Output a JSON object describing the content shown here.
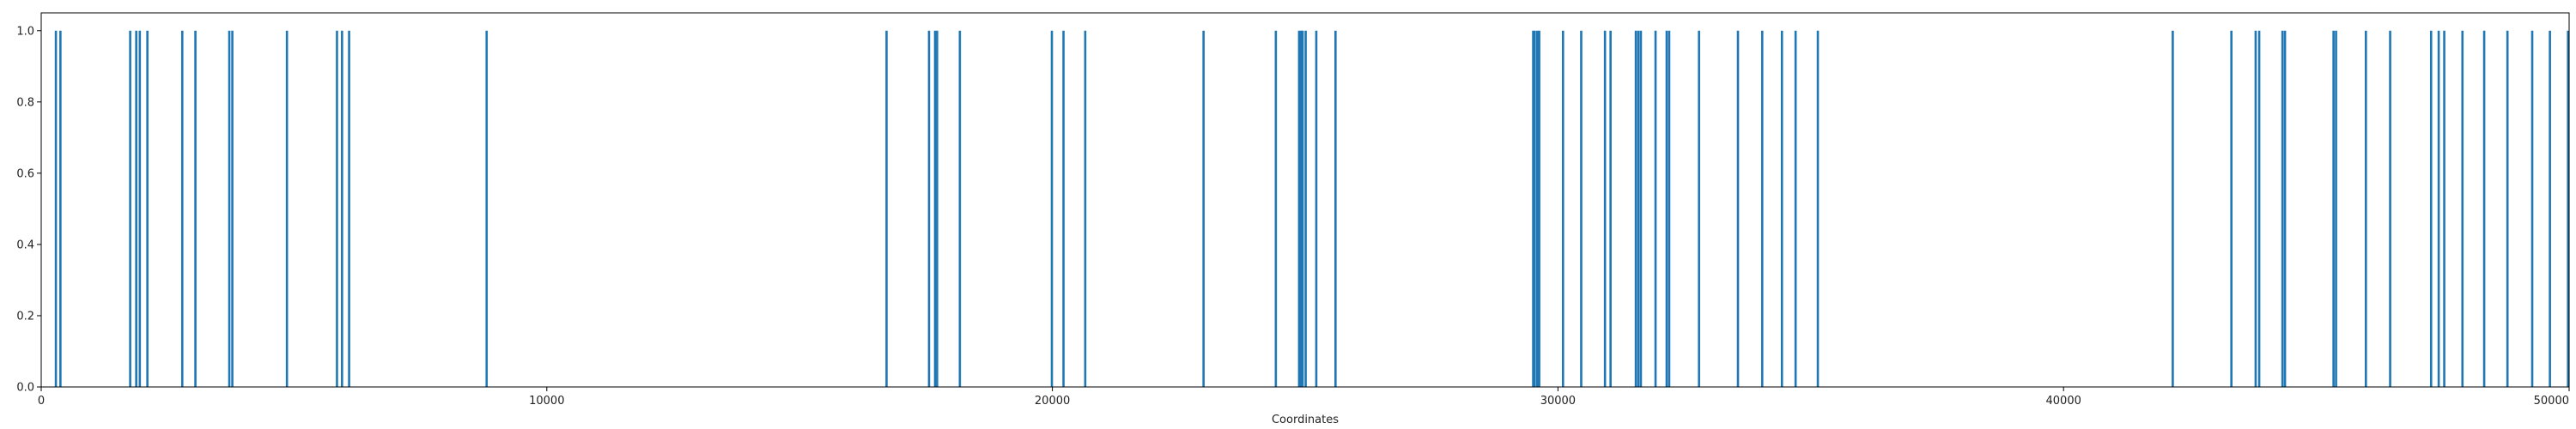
{
  "chart_data": {
    "type": "bar",
    "title": "",
    "xlabel": "Coordinates",
    "ylabel": "",
    "xlim": [
      0,
      50000
    ],
    "ylim": [
      0.0,
      1.05
    ],
    "x_ticks": [
      0,
      10000,
      20000,
      30000,
      40000,
      50000
    ],
    "x_tick_labels": [
      "0",
      "10000",
      "20000",
      "30000",
      "40000",
      "50000"
    ],
    "y_ticks": [
      0.0,
      0.2,
      0.4,
      0.6,
      0.8,
      1.0
    ],
    "y_tick_labels": [
      "0.0",
      "0.2",
      "0.4",
      "0.6",
      "0.8",
      "1.0"
    ],
    "grid": false,
    "bar_color": "#1f77b4",
    "series": [
      {
        "x": [
          290,
          380,
          1760,
          1880,
          1950,
          2100,
          2790,
          3050,
          3720,
          3780,
          4860,
          5850,
          5950,
          6090,
          8810,
          16720,
          17560,
          17680,
          17720,
          18170,
          19990,
          20220,
          20650,
          22990,
          24420,
          24880,
          24920,
          24950,
          25010,
          25220,
          25600,
          29510,
          29540,
          29590,
          29630,
          30100,
          30460,
          30930,
          31040,
          31540,
          31590,
          31640,
          31930,
          32150,
          32200,
          32790,
          33560,
          34040,
          34430,
          34700,
          35140,
          42160,
          43320,
          43800,
          43870,
          44330,
          44380,
          45340,
          45390,
          45980,
          46460,
          47270,
          47420,
          47530,
          47890,
          48320,
          48780,
          49270,
          49620,
          49990
        ],
        "values": [
          1,
          1,
          1,
          1,
          1,
          1,
          1,
          1,
          1,
          1,
          1,
          1,
          1,
          1,
          1,
          1,
          1,
          1,
          1,
          1,
          1,
          1,
          1,
          1,
          1,
          1,
          1,
          1,
          1,
          1,
          1,
          1,
          1,
          1,
          1,
          1,
          1,
          1,
          1,
          1,
          1,
          1,
          1,
          1,
          1,
          1,
          1,
          1,
          1,
          1,
          1,
          1,
          1,
          1,
          1,
          1,
          1,
          1,
          1,
          1,
          1,
          1,
          1,
          1,
          1,
          1,
          1,
          1,
          1,
          1
        ]
      }
    ]
  }
}
